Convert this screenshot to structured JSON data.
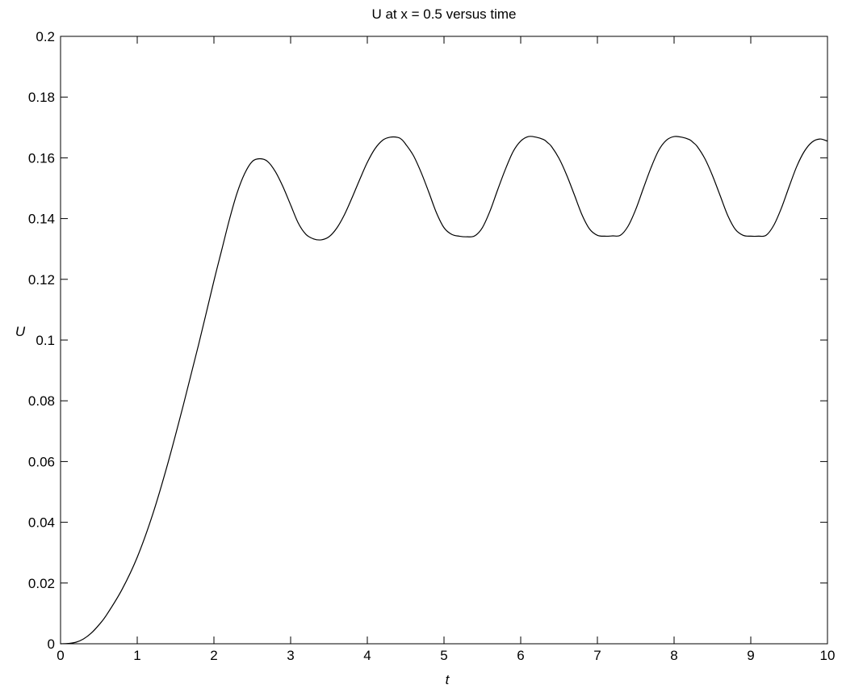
{
  "chart_data": {
    "type": "line",
    "title": "U at x = 0.5 versus time",
    "xlabel": "t",
    "ylabel": "U",
    "xlim": [
      0,
      10
    ],
    "ylim": [
      0,
      0.2
    ],
    "xticks": [
      0,
      1,
      2,
      3,
      4,
      5,
      6,
      7,
      8,
      9,
      10
    ],
    "xtick_labels": [
      "0",
      "1",
      "2",
      "3",
      "4",
      "5",
      "6",
      "7",
      "8",
      "9",
      "10"
    ],
    "yticks": [
      0,
      0.02,
      0.04,
      0.06,
      0.08,
      0.1,
      0.12,
      0.14,
      0.16,
      0.18,
      0.2
    ],
    "ytick_labels": [
      "0",
      "0.02",
      "0.04",
      "0.06",
      "0.08",
      "0.1",
      "0.12",
      "0.14",
      "0.16",
      "0.18",
      "0.2"
    ],
    "grid": false,
    "line_color": "#000000",
    "series": [
      {
        "x": [
          0,
          0.1,
          0.2,
          0.3,
          0.4,
          0.5,
          0.6,
          0.8,
          1.0,
          1.2,
          1.4,
          1.6,
          1.8,
          2.0,
          2.1,
          2.2,
          2.3,
          2.4,
          2.5,
          2.6,
          2.7,
          2.8,
          2.9,
          3.0,
          3.1,
          3.2,
          3.3,
          3.4,
          3.5,
          3.6,
          3.7,
          3.8,
          3.9,
          4.0,
          4.1,
          4.2,
          4.3,
          4.4,
          4.45,
          4.5,
          4.6,
          4.7,
          4.8,
          4.9,
          5.0,
          5.1,
          5.2,
          5.3,
          5.4,
          5.5,
          5.6,
          5.7,
          5.8,
          5.9,
          6.0,
          6.1,
          6.2,
          6.3,
          6.35,
          6.4,
          6.5,
          6.6,
          6.7,
          6.8,
          6.9,
          7.0,
          7.1,
          7.2,
          7.3,
          7.4,
          7.5,
          7.6,
          7.7,
          7.8,
          7.9,
          8.0,
          8.1,
          8.2,
          8.25,
          8.3,
          8.4,
          8.5,
          8.6,
          8.7,
          8.8,
          8.9,
          9.0,
          9.1,
          9.2,
          9.3,
          9.4,
          9.5,
          9.6,
          9.7,
          9.8,
          9.9,
          10.0
        ],
        "y": [
          0,
          0.0001,
          0.0005,
          0.0016,
          0.0035,
          0.0062,
          0.0095,
          0.0178,
          0.0285,
          0.0425,
          0.0595,
          0.0785,
          0.0985,
          0.1195,
          0.1295,
          0.1395,
          0.1483,
          0.1548,
          0.1588,
          0.1597,
          0.1588,
          0.1555,
          0.1505,
          0.1445,
          0.1385,
          0.1348,
          0.1333,
          0.133,
          0.134,
          0.1368,
          0.1412,
          0.1468,
          0.1528,
          0.1585,
          0.163,
          0.1658,
          0.1668,
          0.1667,
          0.166,
          0.1645,
          0.1608,
          0.1553,
          0.1488,
          0.142,
          0.137,
          0.1348,
          0.1342,
          0.134,
          0.1343,
          0.137,
          0.1425,
          0.1495,
          0.1562,
          0.162,
          0.1655,
          0.167,
          0.1668,
          0.166,
          0.165,
          0.1638,
          0.1598,
          0.1543,
          0.1478,
          0.1412,
          0.1365,
          0.1345,
          0.1342,
          0.1343,
          0.1345,
          0.1375,
          0.143,
          0.15,
          0.1568,
          0.1625,
          0.1658,
          0.167,
          0.1668,
          0.166,
          0.165,
          0.1638,
          0.1598,
          0.1542,
          0.1476,
          0.141,
          0.1364,
          0.1345,
          0.1342,
          0.1342,
          0.1345,
          0.1378,
          0.1435,
          0.1505,
          0.1572,
          0.1622,
          0.1652,
          0.1662,
          0.1655
        ]
      }
    ]
  }
}
